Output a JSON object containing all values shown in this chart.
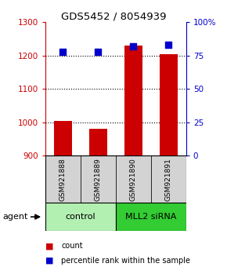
{
  "title": "GDS5452 / 8054939",
  "samples": [
    "GSM921888",
    "GSM921889",
    "GSM921890",
    "GSM921891"
  ],
  "count_values": [
    1005,
    980,
    1230,
    1205
  ],
  "percentile_values": [
    78,
    78,
    82,
    83
  ],
  "left_ylim": [
    900,
    1300
  ],
  "right_ylim": [
    0,
    100
  ],
  "left_yticks": [
    900,
    1000,
    1100,
    1200,
    1300
  ],
  "right_yticks": [
    0,
    25,
    50,
    75,
    100
  ],
  "right_yticklabels": [
    "0",
    "25",
    "50",
    "75",
    "100%"
  ],
  "bar_color": "#cc0000",
  "dot_color": "#0000cc",
  "left_axis_color": "#cc0000",
  "right_axis_color": "#0000cc",
  "groups": [
    {
      "label": "control",
      "start": 0,
      "end": 2,
      "color": "#b2f0b2"
    },
    {
      "label": "MLL2 siRNA",
      "start": 2,
      "end": 4,
      "color": "#33cc33"
    }
  ],
  "agent_label": "agent",
  "legend_count": "count",
  "legend_percentile": "percentile rank within the sample",
  "bar_width": 0.5,
  "dot_size": 40,
  "background_color": "#ffffff",
  "sample_box_color": "#d3d3d3"
}
